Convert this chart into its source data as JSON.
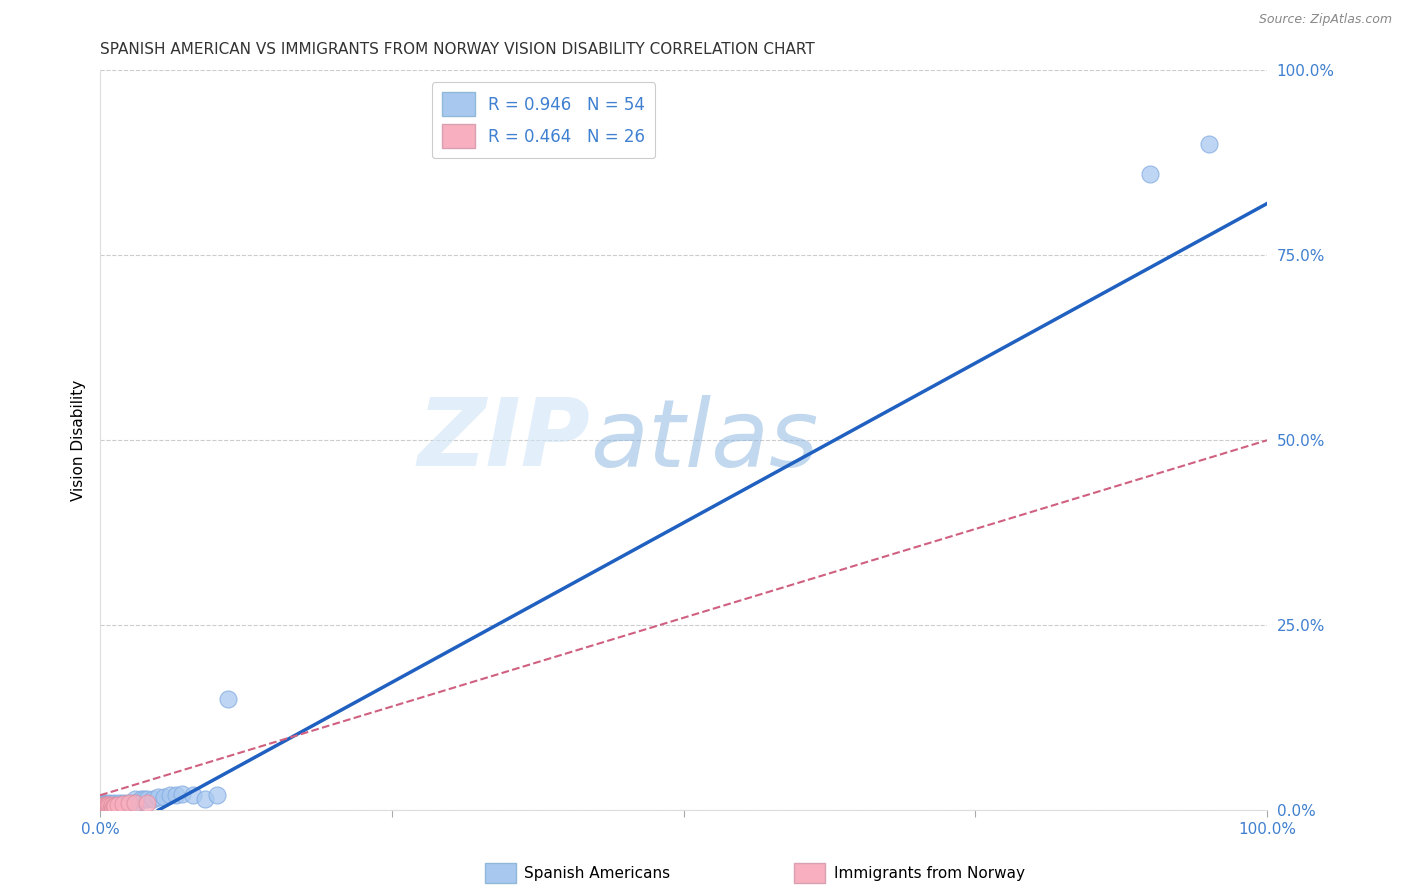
{
  "title": "SPANISH AMERICAN VS IMMIGRANTS FROM NORWAY VISION DISABILITY CORRELATION CHART",
  "source": "Source: ZipAtlas.com",
  "ylabel": "Vision Disability",
  "xlim": [
    0,
    1.0
  ],
  "ylim": [
    0,
    1.0
  ],
  "ytick_positions": [
    0.0,
    0.25,
    0.5,
    0.75,
    1.0
  ],
  "ytick_labels": [
    "0.0%",
    "25.0%",
    "50.0%",
    "75.0%",
    "100.0%"
  ],
  "xtick_positions": [
    0.0,
    0.25,
    0.5,
    0.75,
    1.0
  ],
  "xtick_labels": [
    "0.0%",
    "",
    "",
    "",
    "100.0%"
  ],
  "series1_name": "Spanish Americans",
  "series1_R": 0.946,
  "series1_N": 54,
  "series1_color": "#a8c8f0",
  "series1_line_color": "#2060c0",
  "series2_name": "Immigrants from Norway",
  "series2_R": 0.464,
  "series2_N": 26,
  "series2_color": "#f8b0c0",
  "series2_line_color": "#d06080",
  "watermark_zip": "ZIP",
  "watermark_atlas": "atlas",
  "background_color": "#ffffff",
  "grid_color": "#cccccc",
  "blue_text_color": "#4080d0",
  "axis_text_color": "#4080d0",
  "series1_line_x0": 0.05,
  "series1_line_y0": 0.0,
  "series1_line_x1": 1.0,
  "series1_line_y1": 0.82,
  "series2_line_x0": 0.0,
  "series2_line_y0": 0.02,
  "series2_line_x1": 1.0,
  "series2_line_y1": 0.5,
  "series1_x": [
    0.001,
    0.002,
    0.002,
    0.003,
    0.003,
    0.003,
    0.004,
    0.004,
    0.005,
    0.005,
    0.006,
    0.006,
    0.007,
    0.007,
    0.008,
    0.008,
    0.009,
    0.01,
    0.01,
    0.011,
    0.012,
    0.012,
    0.013,
    0.014,
    0.015,
    0.016,
    0.017,
    0.018,
    0.019,
    0.02,
    0.02,
    0.021,
    0.022,
    0.023,
    0.025,
    0.026,
    0.028,
    0.03,
    0.032,
    0.035,
    0.038,
    0.04,
    0.045,
    0.05,
    0.055,
    0.06,
    0.065,
    0.07,
    0.08,
    0.09,
    0.1,
    0.11,
    0.9,
    0.95
  ],
  "series1_y": [
    0.005,
    0.005,
    0.008,
    0.005,
    0.007,
    0.01,
    0.005,
    0.008,
    0.005,
    0.008,
    0.005,
    0.008,
    0.005,
    0.008,
    0.005,
    0.01,
    0.005,
    0.005,
    0.008,
    0.005,
    0.005,
    0.01,
    0.005,
    0.008,
    0.005,
    0.01,
    0.005,
    0.005,
    0.008,
    0.005,
    0.01,
    0.005,
    0.008,
    0.01,
    0.005,
    0.01,
    0.01,
    0.015,
    0.01,
    0.015,
    0.015,
    0.015,
    0.015,
    0.018,
    0.018,
    0.02,
    0.02,
    0.022,
    0.02,
    0.015,
    0.02,
    0.15,
    0.86,
    0.9
  ],
  "series2_x": [
    0.001,
    0.002,
    0.002,
    0.003,
    0.003,
    0.004,
    0.004,
    0.005,
    0.005,
    0.006,
    0.006,
    0.007,
    0.007,
    0.008,
    0.008,
    0.009,
    0.01,
    0.01,
    0.011,
    0.012,
    0.013,
    0.015,
    0.02,
    0.025,
    0.03,
    0.04
  ],
  "series2_y": [
    0.003,
    0.003,
    0.005,
    0.003,
    0.005,
    0.003,
    0.007,
    0.003,
    0.005,
    0.003,
    0.007,
    0.003,
    0.007,
    0.003,
    0.005,
    0.003,
    0.003,
    0.007,
    0.003,
    0.005,
    0.005,
    0.007,
    0.008,
    0.01,
    0.01,
    0.01
  ]
}
